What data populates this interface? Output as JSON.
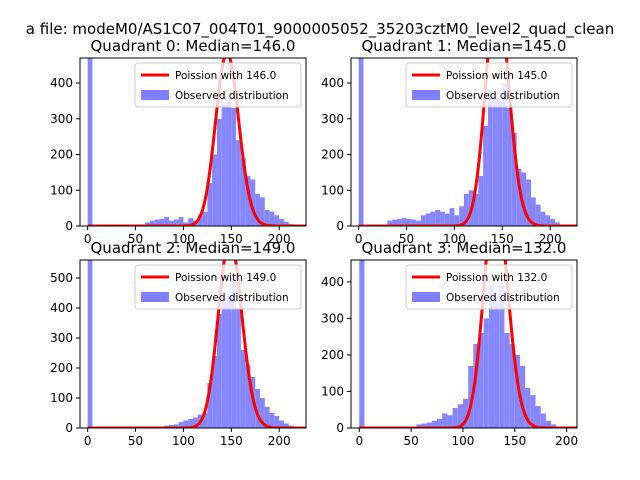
{
  "figure": {
    "suptitle": "a file: modeM0/AS1C07_004T01_9000005052_35203cztM0_level2_quad_clean"
  },
  "chart_data": [
    {
      "type": "bar",
      "title": "Quadrant 0: Median=146.0",
      "xlim": [
        -8,
        228
      ],
      "ylim": [
        0,
        470
      ],
      "xticks": [
        0,
        50,
        100,
        150,
        200
      ],
      "yticks": [
        0,
        100,
        200,
        300,
        400
      ],
      "series": [
        {
          "name": "Poission with 146.0",
          "mean": 146.0,
          "color": "#ff0000"
        },
        {
          "name": "Observed distribution",
          "color": "#8080ff",
          "bin_width": 5,
          "bins": [
            [
              0,
              470
            ],
            [
              60,
              10
            ],
            [
              65,
              15
            ],
            [
              70,
              18
            ],
            [
              75,
              20
            ],
            [
              80,
              25
            ],
            [
              85,
              15
            ],
            [
              90,
              18
            ],
            [
              95,
              25
            ],
            [
              100,
              10
            ],
            [
              105,
              22
            ],
            [
              110,
              15
            ],
            [
              115,
              30
            ],
            [
              120,
              40
            ],
            [
              125,
              120
            ],
            [
              130,
              200
            ],
            [
              135,
              300
            ],
            [
              140,
              340
            ],
            [
              145,
              360
            ],
            [
              150,
              330
            ],
            [
              155,
              240
            ],
            [
              160,
              190
            ],
            [
              165,
              140
            ],
            [
              170,
              130
            ],
            [
              175,
              90
            ],
            [
              180,
              80
            ],
            [
              185,
              45
            ],
            [
              190,
              40
            ],
            [
              195,
              30
            ],
            [
              200,
              20
            ],
            [
              205,
              12
            ],
            [
              210,
              5
            ]
          ]
        }
      ],
      "legend": "top-right"
    },
    {
      "type": "bar",
      "title": "Quadrant 1: Median=145.0",
      "xlim": [
        -8,
        228
      ],
      "ylim": [
        0,
        470
      ],
      "xticks": [
        0,
        50,
        100,
        150,
        200
      ],
      "yticks": [
        0,
        100,
        200,
        300,
        400
      ],
      "series": [
        {
          "name": "Poission with 145.0",
          "mean": 145.0,
          "color": "#ff0000"
        },
        {
          "name": "Observed distribution",
          "color": "#8080ff",
          "bin_width": 5,
          "bins": [
            [
              0,
              470
            ],
            [
              30,
              15
            ],
            [
              35,
              18
            ],
            [
              40,
              20
            ],
            [
              45,
              22
            ],
            [
              50,
              20
            ],
            [
              55,
              18
            ],
            [
              60,
              15
            ],
            [
              65,
              30
            ],
            [
              70,
              35
            ],
            [
              75,
              40
            ],
            [
              80,
              45
            ],
            [
              85,
              40
            ],
            [
              90,
              35
            ],
            [
              95,
              50
            ],
            [
              100,
              30
            ],
            [
              105,
              55
            ],
            [
              110,
              90
            ],
            [
              115,
              100
            ],
            [
              120,
              90
            ],
            [
              125,
              140
            ],
            [
              130,
              280
            ],
            [
              135,
              380
            ],
            [
              140,
              360
            ],
            [
              145,
              350
            ],
            [
              150,
              400
            ],
            [
              155,
              330
            ],
            [
              160,
              260
            ],
            [
              165,
              160
            ],
            [
              170,
              150
            ],
            [
              175,
              130
            ],
            [
              180,
              80
            ],
            [
              185,
              60
            ],
            [
              190,
              40
            ],
            [
              195,
              30
            ],
            [
              200,
              20
            ],
            [
              205,
              10
            ]
          ]
        }
      ],
      "legend": "top-right"
    },
    {
      "type": "bar",
      "title": "Quadrant 2: Median=149.0",
      "xlim": [
        -8,
        228
      ],
      "ylim": [
        0,
        560
      ],
      "xticks": [
        0,
        50,
        100,
        150,
        200
      ],
      "yticks": [
        0,
        100,
        200,
        300,
        400,
        500
      ],
      "series": [
        {
          "name": "Poission with 149.0",
          "mean": 149.0,
          "color": "#ff0000"
        },
        {
          "name": "Observed distribution",
          "color": "#8080ff",
          "bin_width": 5,
          "bins": [
            [
              0,
              560
            ],
            [
              75,
              5
            ],
            [
              80,
              8
            ],
            [
              85,
              10
            ],
            [
              90,
              12
            ],
            [
              95,
              20
            ],
            [
              100,
              25
            ],
            [
              105,
              30
            ],
            [
              110,
              35
            ],
            [
              115,
              45
            ],
            [
              120,
              50
            ],
            [
              125,
              150
            ],
            [
              130,
              240
            ],
            [
              135,
              380
            ],
            [
              140,
              420
            ],
            [
              145,
              440
            ],
            [
              150,
              500
            ],
            [
              155,
              400
            ],
            [
              160,
              260
            ],
            [
              165,
              210
            ],
            [
              170,
              170
            ],
            [
              175,
              130
            ],
            [
              180,
              100
            ],
            [
              185,
              70
            ],
            [
              190,
              50
            ],
            [
              195,
              40
            ],
            [
              200,
              25
            ],
            [
              205,
              15
            ],
            [
              210,
              8
            ]
          ]
        }
      ],
      "legend": "top-right"
    },
    {
      "type": "bar",
      "title": "Quadrant 3: Median=132.0",
      "xlim": [
        -8,
        210
      ],
      "ylim": [
        0,
        460
      ],
      "xticks": [
        0,
        50,
        100,
        150,
        200
      ],
      "yticks": [
        0,
        100,
        200,
        300,
        400
      ],
      "series": [
        {
          "name": "Poission with 132.0",
          "mean": 132.0,
          "color": "#ff0000"
        },
        {
          "name": "Observed distribution",
          "color": "#8080ff",
          "bin_width": 5,
          "bins": [
            [
              0,
              460
            ],
            [
              55,
              10
            ],
            [
              60,
              12
            ],
            [
              65,
              15
            ],
            [
              70,
              20
            ],
            [
              75,
              25
            ],
            [
              80,
              40
            ],
            [
              85,
              35
            ],
            [
              90,
              55
            ],
            [
              95,
              65
            ],
            [
              100,
              80
            ],
            [
              105,
              170
            ],
            [
              110,
              230
            ],
            [
              115,
              260
            ],
            [
              120,
              300
            ],
            [
              125,
              390
            ],
            [
              130,
              360
            ],
            [
              135,
              390
            ],
            [
              140,
              260
            ],
            [
              145,
              230
            ],
            [
              150,
              200
            ],
            [
              155,
              170
            ],
            [
              160,
              110
            ],
            [
              165,
              90
            ],
            [
              170,
              60
            ],
            [
              175,
              40
            ],
            [
              180,
              20
            ],
            [
              185,
              10
            ]
          ]
        }
      ],
      "legend": "top-right"
    }
  ]
}
